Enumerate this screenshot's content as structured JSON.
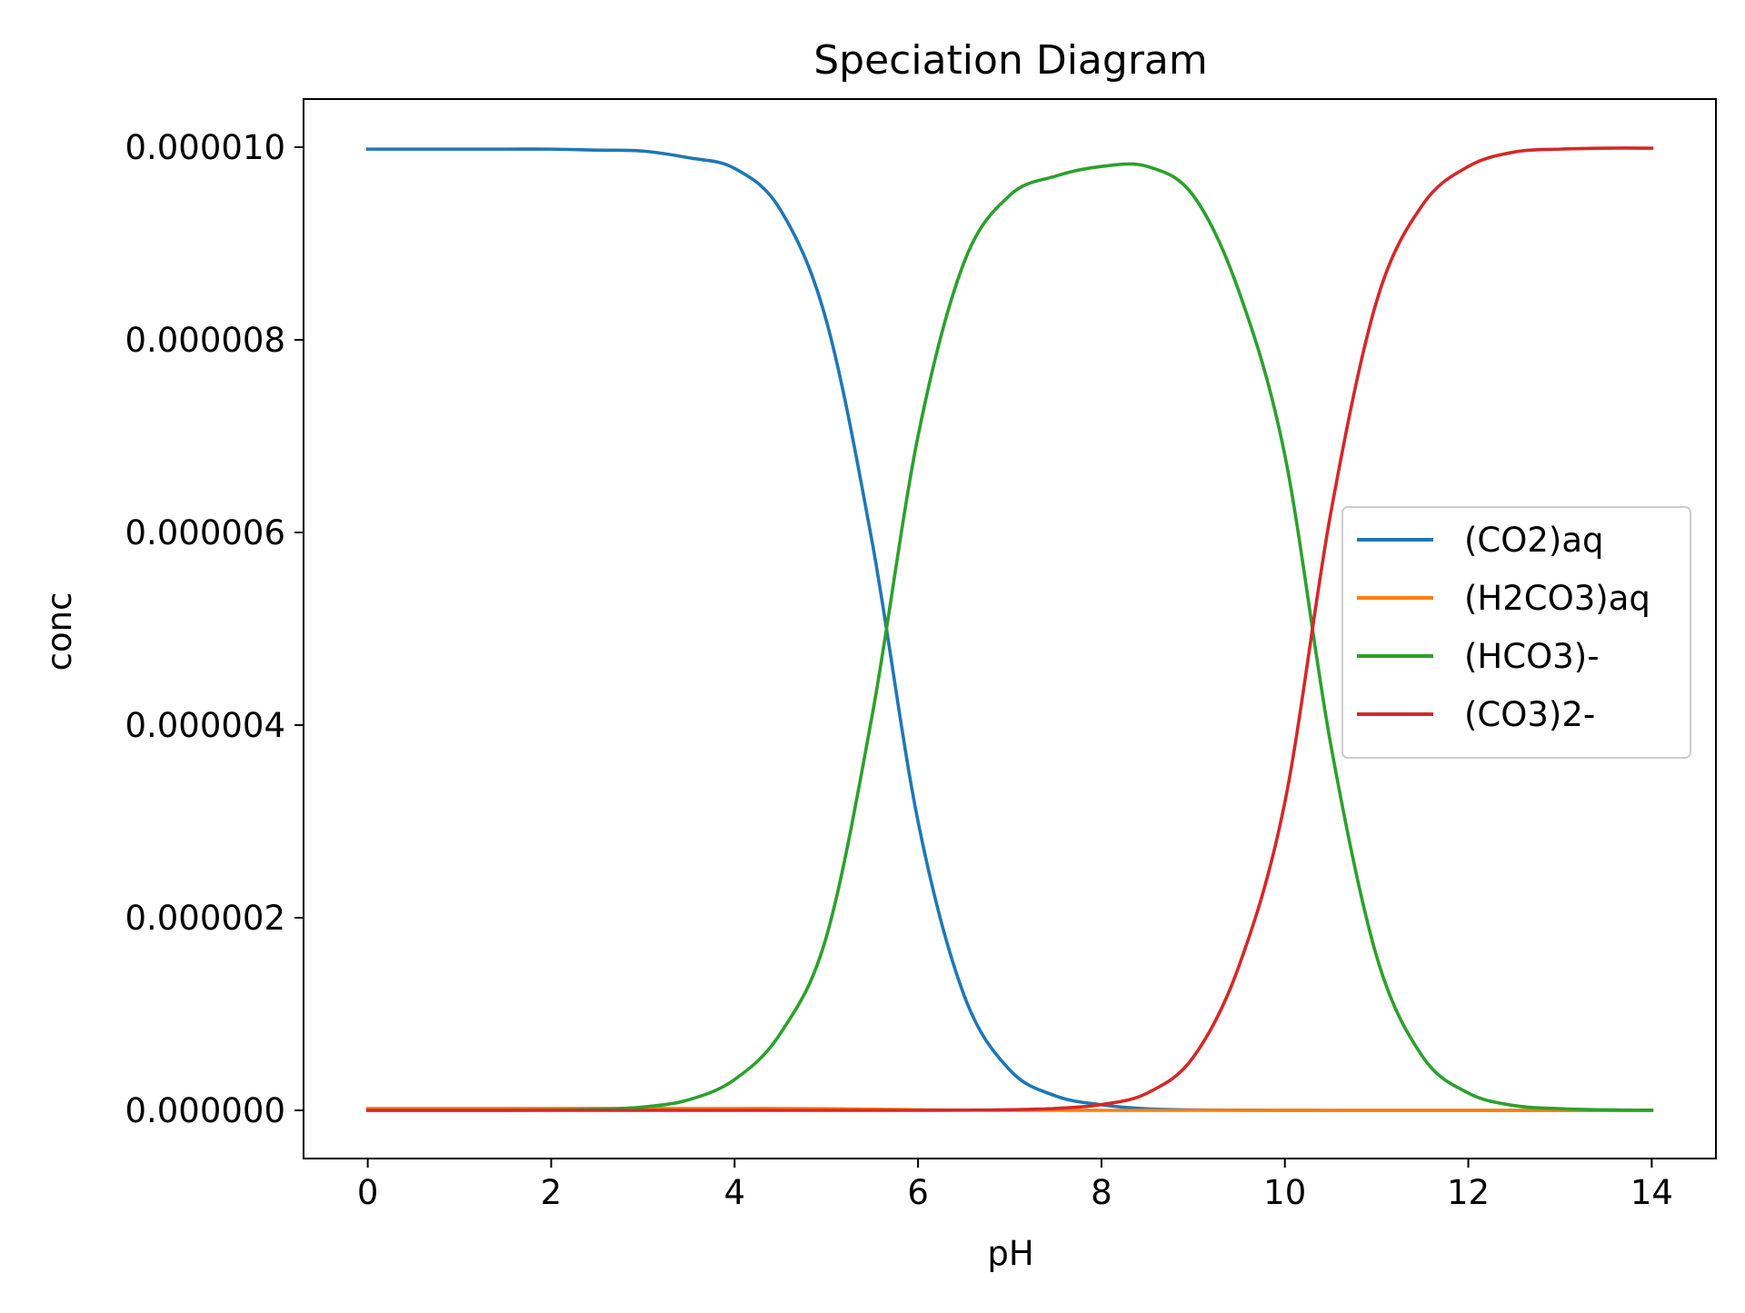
{
  "chart_data": {
    "type": "line",
    "title": "Speciation Diagram",
    "xlabel": "pH",
    "ylabel": "conc",
    "xlim": [
      -0.7,
      14.7
    ],
    "ylim": [
      -5e-07,
      1.05e-05
    ],
    "xticks": [
      0,
      2,
      4,
      6,
      8,
      10,
      12,
      14
    ],
    "xtick_labels": [
      "0",
      "2",
      "4",
      "6",
      "8",
      "10",
      "12",
      "14"
    ],
    "yticks": [
      0,
      2e-06,
      4e-06,
      6e-06,
      8e-06,
      1e-05
    ],
    "ytick_labels": [
      "0.000000",
      "0.000002",
      "0.000004",
      "0.000006",
      "0.000008",
      "0.000010"
    ],
    "grid": false,
    "legend_position": "center-right",
    "x": [
      0,
      0.5,
      1,
      1.5,
      2,
      2.5,
      3,
      3.5,
      4,
      4.5,
      5,
      5.5,
      6,
      6.5,
      7,
      7.5,
      8,
      8.5,
      9,
      9.5,
      10,
      10.5,
      11,
      11.5,
      12,
      12.5,
      13,
      13.5,
      14
    ],
    "series": [
      {
        "name": "(CO2)aq",
        "color": "#1f77b4",
        "values": [
          9.98e-06,
          9.98e-06,
          9.98e-06,
          9.98e-06,
          9.98e-06,
          9.97e-06,
          9.96e-06,
          9.89e-06,
          9.78e-06,
          9.35e-06,
          8.2e-06,
          5.9e-06,
          3e-06,
          1.2e-06,
          4.2e-07,
          1.5e-07,
          5.8e-08,
          1.6e-08,
          4.6e-09,
          1.3e-09,
          4e-10,
          1e-10,
          0,
          0,
          0,
          0,
          0,
          0,
          0
        ]
      },
      {
        "name": "(H2CO3)aq",
        "color": "#ff7f0e",
        "values": [
          2e-08,
          2e-08,
          2e-08,
          2e-08,
          2e-08,
          2e-08,
          2e-08,
          2e-08,
          2e-08,
          2e-08,
          1.7e-08,
          1.2e-08,
          6e-09,
          2.4e-09,
          8e-10,
          3e-10,
          1e-10,
          0,
          0,
          0,
          0,
          0,
          0,
          0,
          0,
          0,
          0,
          0,
          0
        ]
      },
      {
        "name": "(HCO3)-",
        "color": "#2ca02c",
        "values": [
          0,
          0,
          0,
          0,
          4e-09,
          1.1e-08,
          3.5e-08,
          1.1e-07,
          3.2e-07,
          8e-07,
          1.8e-06,
          4.1e-06,
          7e-06,
          8.8e-06,
          9.5e-06,
          9.7e-06,
          9.8e-06,
          9.8e-06,
          9.5e-06,
          8.5e-06,
          6.8e-06,
          3.8e-06,
          1.6e-06,
          5.6e-07,
          1.8e-07,
          5e-08,
          1.7e-08,
          5e-09,
          1.5e-09
        ]
      },
      {
        "name": "(CO3)2-",
        "color": "#d62728",
        "values": [
          0,
          0,
          0,
          0,
          0,
          0,
          0,
          0,
          0,
          0,
          0,
          0,
          0,
          2e-09,
          6e-09,
          2e-08,
          6e-08,
          1.8e-07,
          5.5e-07,
          1.5e-06,
          3.2e-06,
          6.2e-06,
          8.4e-06,
          9.4e-06,
          9.8e-06,
          9.95e-06,
          9.98e-06,
          9.99e-06,
          9.99e-06
        ]
      }
    ]
  }
}
